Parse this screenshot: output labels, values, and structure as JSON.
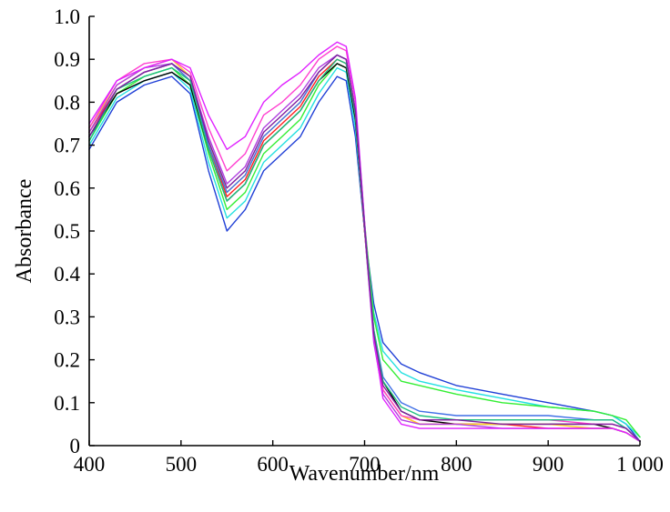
{
  "chart_data": {
    "type": "line",
    "title": "",
    "xlabel": "Wavenumber/nm",
    "ylabel": "Absorbance",
    "xlim": [
      400,
      1000
    ],
    "ylim": [
      0,
      1.0
    ],
    "x_ticks": [
      400,
      500,
      600,
      700,
      800,
      900,
      1000
    ],
    "x_tick_labels": [
      "400",
      "500",
      "600",
      "700",
      "800",
      "900",
      "1 000"
    ],
    "y_ticks": [
      0,
      0.1,
      0.2,
      0.3,
      0.4,
      0.5,
      0.6,
      0.7,
      0.8,
      0.9,
      1.0
    ],
    "y_tick_labels": [
      "0",
      "0.1",
      "0.2",
      "0.3",
      "0.4",
      "0.5",
      "0.6",
      "0.7",
      "0.8",
      "0.9",
      "1.0"
    ],
    "grid": false,
    "legend": "none",
    "x": [
      400,
      430,
      460,
      490,
      510,
      530,
      550,
      570,
      590,
      610,
      630,
      650,
      670,
      680,
      690,
      700,
      710,
      720,
      740,
      760,
      800,
      850,
      900,
      950,
      970,
      985,
      1000
    ],
    "series": [
      {
        "color": "#1f3fd6",
        "values": [
          0.69,
          0.8,
          0.84,
          0.86,
          0.82,
          0.64,
          0.5,
          0.55,
          0.64,
          0.68,
          0.72,
          0.8,
          0.86,
          0.85,
          0.72,
          0.5,
          0.33,
          0.24,
          0.19,
          0.17,
          0.14,
          0.12,
          0.1,
          0.08,
          0.07,
          0.05,
          0.01
        ]
      },
      {
        "color": "#22e0e0",
        "values": [
          0.7,
          0.81,
          0.85,
          0.87,
          0.83,
          0.66,
          0.53,
          0.57,
          0.66,
          0.7,
          0.74,
          0.82,
          0.88,
          0.87,
          0.74,
          0.5,
          0.31,
          0.22,
          0.17,
          0.15,
          0.13,
          0.11,
          0.09,
          0.08,
          0.07,
          0.05,
          0.02
        ]
      },
      {
        "color": "#33ee33",
        "values": [
          0.71,
          0.82,
          0.86,
          0.88,
          0.84,
          0.68,
          0.55,
          0.59,
          0.68,
          0.72,
          0.76,
          0.84,
          0.89,
          0.88,
          0.76,
          0.52,
          0.3,
          0.2,
          0.15,
          0.14,
          0.12,
          0.1,
          0.09,
          0.08,
          0.07,
          0.06,
          0.02
        ]
      },
      {
        "color": "#000000",
        "values": [
          0.72,
          0.82,
          0.85,
          0.87,
          0.84,
          0.69,
          0.57,
          0.61,
          0.7,
          0.74,
          0.78,
          0.85,
          0.89,
          0.88,
          0.76,
          0.5,
          0.26,
          0.15,
          0.08,
          0.06,
          0.05,
          0.05,
          0.05,
          0.05,
          0.04,
          0.03,
          0.01
        ]
      },
      {
        "color": "#ff1f1f",
        "values": [
          0.73,
          0.83,
          0.87,
          0.89,
          0.85,
          0.7,
          0.58,
          0.62,
          0.71,
          0.75,
          0.79,
          0.86,
          0.9,
          0.89,
          0.77,
          0.5,
          0.25,
          0.13,
          0.07,
          0.05,
          0.05,
          0.05,
          0.04,
          0.04,
          0.04,
          0.03,
          0.01
        ]
      },
      {
        "color": "#ffd21f",
        "values": [
          0.74,
          0.84,
          0.88,
          0.9,
          0.86,
          0.71,
          0.59,
          0.63,
          0.72,
          0.76,
          0.8,
          0.87,
          0.91,
          0.9,
          0.78,
          0.5,
          0.25,
          0.13,
          0.07,
          0.05,
          0.05,
          0.05,
          0.05,
          0.04,
          0.04,
          0.03,
          0.01
        ]
      },
      {
        "color": "#b03fe0",
        "values": [
          0.73,
          0.84,
          0.88,
          0.89,
          0.86,
          0.72,
          0.61,
          0.65,
          0.74,
          0.78,
          0.82,
          0.88,
          0.91,
          0.9,
          0.78,
          0.5,
          0.24,
          0.12,
          0.06,
          0.05,
          0.05,
          0.04,
          0.04,
          0.04,
          0.04,
          0.03,
          0.01
        ]
      },
      {
        "color": "#ff3fd0",
        "values": [
          0.74,
          0.85,
          0.89,
          0.9,
          0.87,
          0.74,
          0.64,
          0.68,
          0.77,
          0.8,
          0.84,
          0.9,
          0.93,
          0.92,
          0.8,
          0.52,
          0.26,
          0.13,
          0.07,
          0.06,
          0.06,
          0.06,
          0.06,
          0.05,
          0.05,
          0.04,
          0.01
        ]
      },
      {
        "color": "#e022ff",
        "values": [
          0.75,
          0.85,
          0.88,
          0.9,
          0.88,
          0.77,
          0.69,
          0.72,
          0.8,
          0.84,
          0.87,
          0.91,
          0.94,
          0.93,
          0.81,
          0.52,
          0.25,
          0.11,
          0.05,
          0.04,
          0.04,
          0.04,
          0.04,
          0.04,
          0.04,
          0.03,
          0.01
        ]
      },
      {
        "color": "#3f6fe6",
        "values": [
          0.72,
          0.83,
          0.87,
          0.89,
          0.85,
          0.7,
          0.59,
          0.63,
          0.72,
          0.76,
          0.8,
          0.87,
          0.91,
          0.9,
          0.78,
          0.51,
          0.27,
          0.16,
          0.1,
          0.08,
          0.07,
          0.07,
          0.07,
          0.06,
          0.06,
          0.04,
          0.01
        ]
      },
      {
        "color": "#1fbf7f",
        "values": [
          0.71,
          0.83,
          0.86,
          0.88,
          0.85,
          0.69,
          0.57,
          0.61,
          0.7,
          0.74,
          0.78,
          0.85,
          0.9,
          0.89,
          0.77,
          0.51,
          0.27,
          0.15,
          0.09,
          0.07,
          0.06,
          0.06,
          0.06,
          0.06,
          0.06,
          0.04,
          0.01
        ]
      },
      {
        "color": "#7f1f9f",
        "values": [
          0.72,
          0.83,
          0.87,
          0.89,
          0.86,
          0.71,
          0.6,
          0.64,
          0.73,
          0.77,
          0.81,
          0.87,
          0.91,
          0.9,
          0.78,
          0.51,
          0.26,
          0.14,
          0.08,
          0.06,
          0.06,
          0.05,
          0.05,
          0.05,
          0.05,
          0.04,
          0.01
        ]
      }
    ]
  }
}
